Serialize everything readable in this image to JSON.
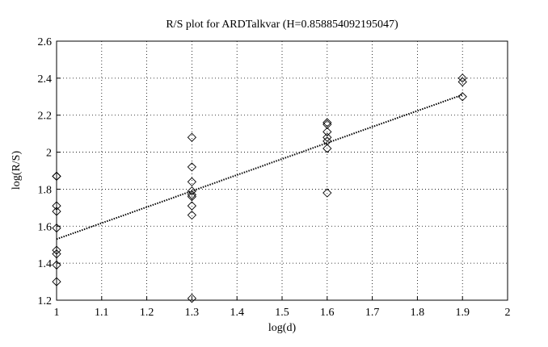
{
  "chart_data": {
    "type": "scatter",
    "title": "R/S plot for ARDTalkvar (H=0.858854092195047)",
    "x_label": "log(d)",
    "y_label": "log(R/S)",
    "xlim": [
      1,
      2
    ],
    "ylim": [
      1.2,
      2.6
    ],
    "xticks": [
      1,
      1.1,
      1.2,
      1.3,
      1.4,
      1.5,
      1.6,
      1.7,
      1.8,
      1.9,
      2
    ],
    "yticks": [
      1.2,
      1.4,
      1.6,
      1.8,
      2,
      2.2,
      2.4,
      2.6
    ],
    "grid": true,
    "series": [
      {
        "color": "#000000",
        "marker": "diamond",
        "x": [
          1,
          1,
          1,
          1,
          1,
          1,
          1,
          1,
          1,
          1.3,
          1.3,
          1.3,
          1.3,
          1.3,
          1.3,
          1.3,
          1.3,
          1.3,
          1.6,
          1.6,
          1.6,
          1.6,
          1.6,
          1.6,
          1.6,
          1.9,
          1.9,
          1.9
        ],
        "values": [
          1.87,
          1.71,
          1.68,
          1.59,
          1.47,
          1.45,
          1.39,
          1.3,
          1.87,
          2.08,
          1.92,
          1.84,
          1.79,
          1.77,
          1.76,
          1.71,
          1.66,
          1.21,
          2.16,
          2.15,
          2.11,
          2.08,
          2.06,
          2.02,
          1.78,
          2.4,
          2.38,
          2.3
        ]
      },
      {
        "color": "#000000",
        "style": "dotted",
        "x": [
          1,
          1.9
        ],
        "values": [
          1.53,
          2.31
        ]
      }
    ]
  }
}
